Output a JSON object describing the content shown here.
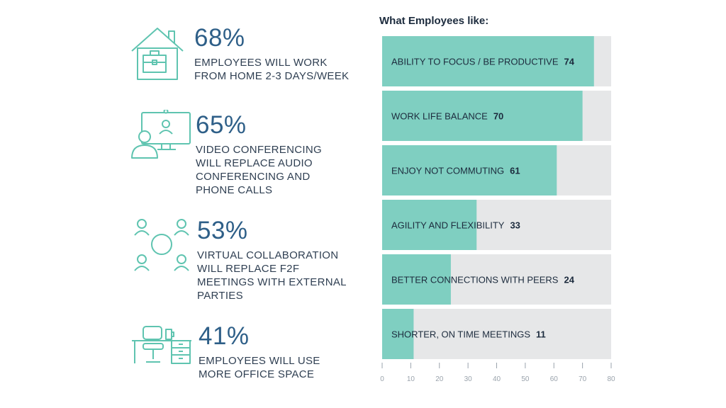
{
  "stats": [
    {
      "percent": "68%",
      "lines": [
        "EMPLOYEES WILL WORK",
        "FROM HOME 2-3 DAYS/WEEK"
      ],
      "icon": "house-briefcase-icon"
    },
    {
      "percent": "65%",
      "lines": [
        "VIDEO CONFERENCING",
        "WILL REPLACE AUDIO",
        "CONFERENCING AND",
        "PHONE CALLS"
      ],
      "icon": "video-conference-icon"
    },
    {
      "percent": "53%",
      "lines": [
        "VIRTUAL COLLABORATION",
        "WILL REPLACE F2F",
        "MEETINGS WITH EXTERNAL",
        "PARTIES"
      ],
      "icon": "collaboration-icon"
    },
    {
      "percent": "41%",
      "lines": [
        "EMPLOYEES WILL USE",
        "MORE OFFICE SPACE"
      ],
      "icon": "office-desk-icon"
    }
  ],
  "colors": {
    "accent": "#5fc4b0",
    "bar_fill": "#7fcfc1",
    "bar_track": "#e6e7e8",
    "stat_number": "#2e5f88",
    "text": "#1c2b3d",
    "tick": "#9aa3ac"
  },
  "chart_data": {
    "type": "bar",
    "orientation": "horizontal",
    "title": "What Employees like:",
    "categories": [
      "ABILITY TO FOCUS / BE PRODUCTIVE",
      "WORK LIFE BALANCE",
      "ENJOY NOT COMMUTING",
      "AGILITY AND FLEXIBILITY",
      "BETTER CONNECTIONS WITH PEERS",
      "SHORTER, ON TIME MEETINGS"
    ],
    "values": [
      74,
      70,
      61,
      33,
      24,
      11
    ],
    "xlim": [
      0,
      80
    ],
    "ticks": [
      0,
      10,
      20,
      30,
      40,
      50,
      60,
      70,
      80
    ],
    "grid": false,
    "legend": "none"
  }
}
